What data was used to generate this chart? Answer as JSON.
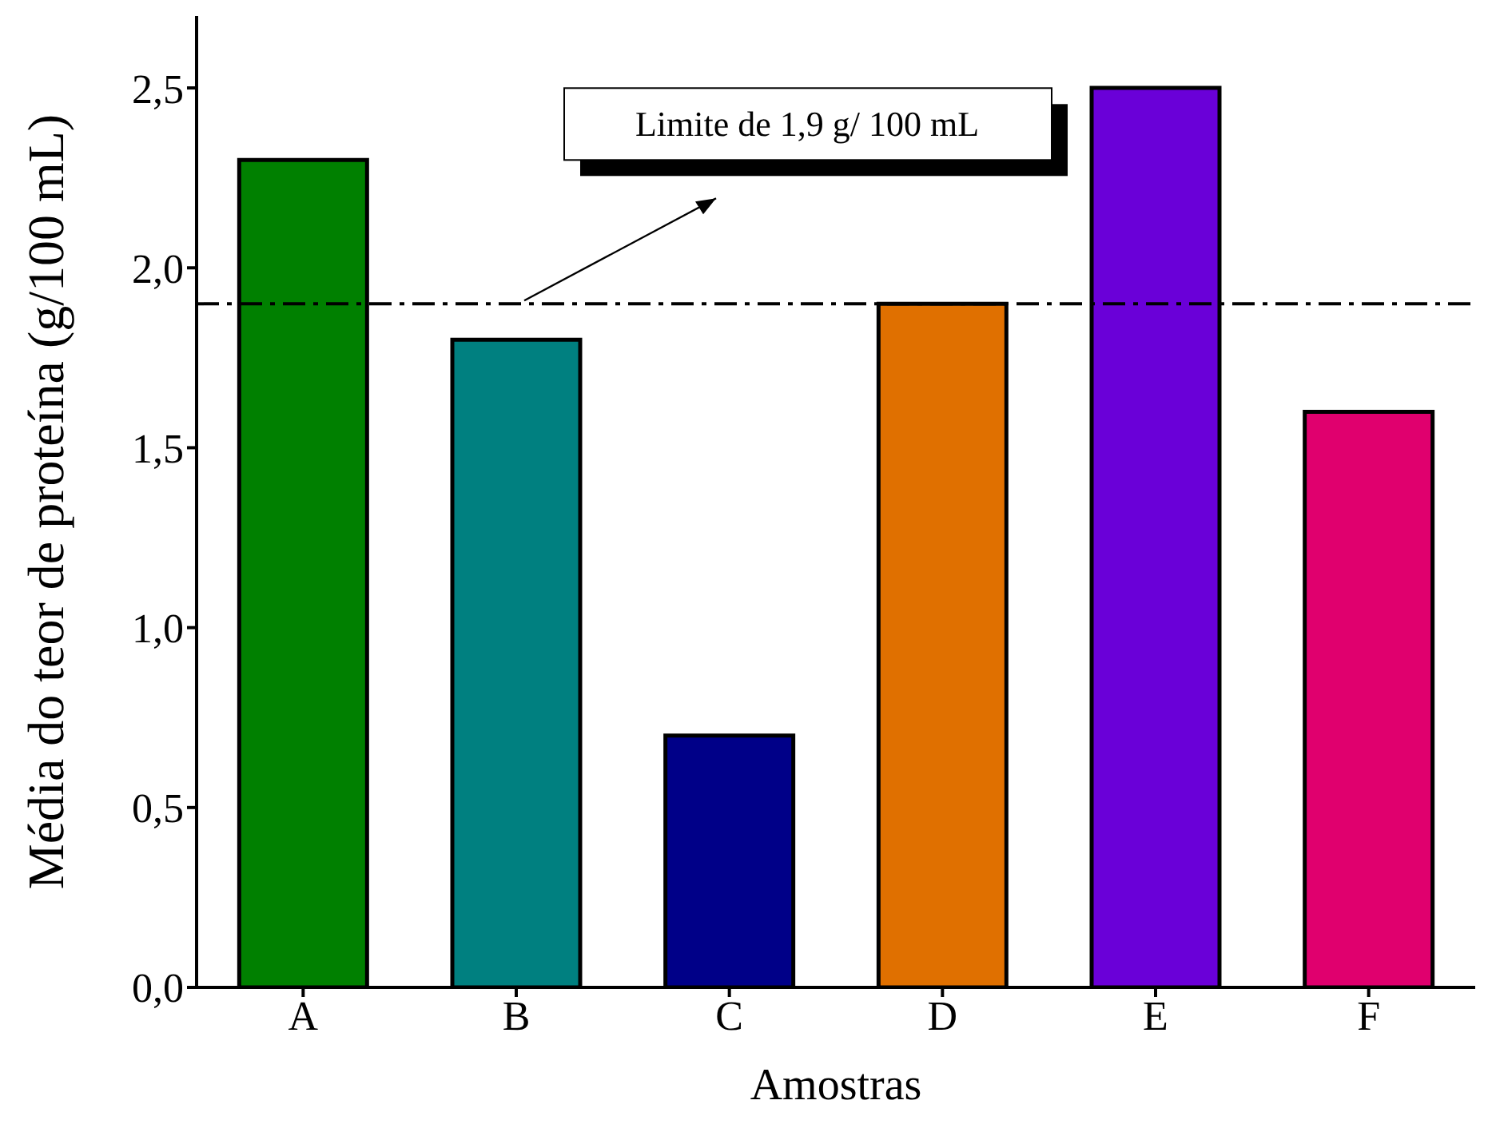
{
  "chart_data": {
    "type": "bar",
    "xlabel": "Amostras",
    "ylabel": "Média do teor de proteína (g/100 mL)",
    "categories": [
      "A",
      "B",
      "C",
      "D",
      "E",
      "F"
    ],
    "values": [
      2.3,
      1.8,
      0.7,
      1.9,
      2.5,
      1.6
    ],
    "colors": [
      "#008000",
      "#008080",
      "#000088",
      "#e07000",
      "#6a00d8",
      "#e0006e"
    ],
    "ylim": [
      0,
      2.7
    ],
    "yticks": [
      {
        "value": 0,
        "label": "0,0"
      },
      {
        "value": 0.5,
        "label": "0,5"
      },
      {
        "value": 1,
        "label": "1,0"
      },
      {
        "value": 1.5,
        "label": "1,5"
      },
      {
        "value": 2,
        "label": "2,0"
      },
      {
        "value": 2.5,
        "label": "2,5"
      }
    ],
    "ref_lines": [
      {
        "axis": "y",
        "value": 1.9,
        "label": "Limite de 1,9 g/ 100 mL",
        "color": "#000000",
        "line_style": "dashdot"
      }
    ]
  }
}
